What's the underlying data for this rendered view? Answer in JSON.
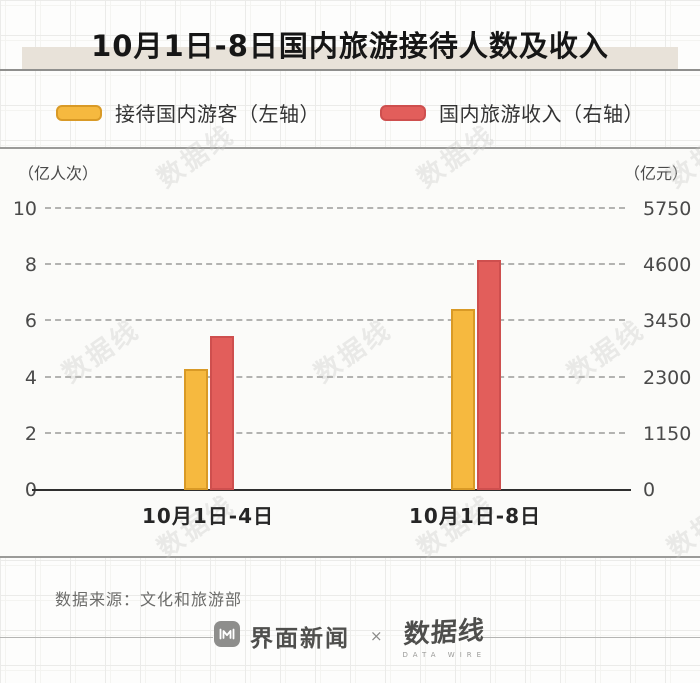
{
  "title": "10月1日-8日国内旅游接待人数及收入",
  "legend": [
    {
      "label": "接待国内游客（左轴）",
      "color": "#F6B93F",
      "border": "#D99A26"
    },
    {
      "label": "国内旅游收入（右轴）",
      "color": "#E25E5B",
      "border": "#CE4F4E"
    }
  ],
  "chart_data": {
    "type": "bar",
    "categories": [
      "10月1日-4日",
      "10月1日-8日"
    ],
    "series": [
      {
        "name": "接待国内游客（左轴）",
        "axis": "left",
        "values": [
          4.25,
          6.37
        ],
        "color": "#F6B93F",
        "border": "#D99A26"
      },
      {
        "name": "国内旅游收入（右轴）",
        "axis": "right",
        "values": [
          3120.2,
          4665.6
        ],
        "color": "#E25E5B",
        "border": "#CE4F4E"
      }
    ],
    "left_axis": {
      "unit": "（亿人次）",
      "ticks": [
        0,
        2,
        4,
        6,
        8,
        10
      ],
      "range": [
        0,
        10
      ]
    },
    "right_axis": {
      "unit": "（亿元）",
      "ticks": [
        0,
        1150,
        2300,
        3450,
        4600,
        5750
      ],
      "range": [
        0,
        5750
      ]
    },
    "grid": "horizontal dashed",
    "legend_position": "top"
  },
  "source": "数据来源：文化和旅游部",
  "footer": {
    "jiemian": "界面新闻",
    "separator": "×",
    "datawire": "数据线",
    "datawire_caption": "DATA WIRE"
  },
  "watermark": "数据线"
}
